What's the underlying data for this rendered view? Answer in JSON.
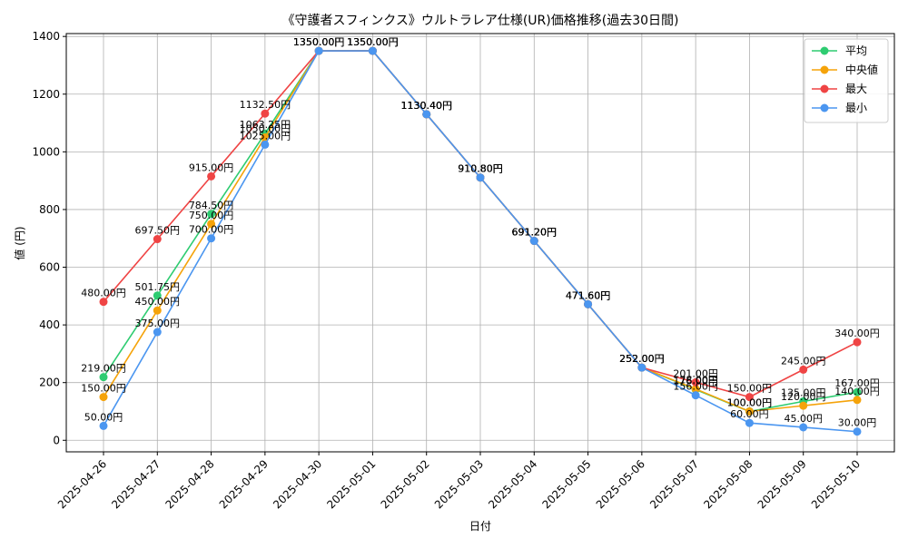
{
  "chart_data": {
    "type": "line",
    "title": "《守護者スフィンクス》ウルトラレア仕様(UR)価格推移(過去30日間)",
    "xlabel": "日付",
    "ylabel": "値 (円)",
    "ylim": [
      -40,
      1410
    ],
    "yticks": [
      0,
      200,
      400,
      600,
      800,
      1000,
      1200,
      1400
    ],
    "grid": true,
    "legend_position": "top-right",
    "categories": [
      "2025-04-26",
      "2025-04-27",
      "2025-04-28",
      "2025-04-29",
      "2025-04-30",
      "2025-05-01",
      "2025-05-02",
      "2025-05-03",
      "2025-05-04",
      "2025-05-05",
      "2025-05-06",
      "2025-05-07",
      "2025-05-08",
      "2025-05-09",
      "2025-05-10"
    ],
    "series": [
      {
        "name": "平均",
        "color": "#2ecc71",
        "values": [
          219.0,
          501.75,
          784.5,
          1063.25,
          1350.0,
          1350.0,
          1130.4,
          910.8,
          691.2,
          471.6,
          252.0,
          176.0,
          100.0,
          135.0,
          167.0
        ],
        "labels": [
          "219.00円",
          "501.75円",
          "784.50円",
          "1063.25円",
          "1350.00円",
          "1350.00円",
          "1130.40円",
          "910.80円",
          "691.20円",
          "471.60円",
          "252.00円",
          "176.00円",
          "100.00円",
          "135.00円",
          "167.00円"
        ]
      },
      {
        "name": "中央値",
        "color": "#f5a30a",
        "values": [
          150.0,
          450.0,
          750.0,
          1050.0,
          1350.0,
          1350.0,
          1130.4,
          910.8,
          691.2,
          471.6,
          252.0,
          178.0,
          100.0,
          120.0,
          140.0
        ],
        "labels": [
          "150.00円",
          "450.00円",
          "750.00円",
          "1050.00円",
          "1350.00円",
          "1350.00円",
          "1130.40円",
          "910.80円",
          "691.20円",
          "471.60円",
          "252.00円",
          "178.00円",
          "100.00円",
          "120.00円",
          "140.00円"
        ]
      },
      {
        "name": "最大",
        "color": "#ef4444",
        "values": [
          480.0,
          697.5,
          915.0,
          1132.5,
          1350.0,
          1350.0,
          1130.4,
          910.8,
          691.2,
          471.6,
          252.0,
          201.0,
          150.0,
          245.0,
          340.0
        ],
        "labels": [
          "480.00円",
          "697.50円",
          "915.00円",
          "1132.50円",
          "1350.00円",
          "1350.00円",
          "1130.40円",
          "910.80円",
          "691.20円",
          "471.60円",
          "252.00円",
          "201.00円",
          "150.00円",
          "245.00円",
          "340.00円"
        ]
      },
      {
        "name": "最小",
        "color": "#4b96f0",
        "values": [
          50.0,
          375.0,
          700.0,
          1025.0,
          1350.0,
          1350.0,
          1130.4,
          910.8,
          691.2,
          471.6,
          252.0,
          156.0,
          60.0,
          45.0,
          30.0
        ],
        "labels": [
          "50.00円",
          "375.00円",
          "700.00円",
          "1025.00円",
          "1350.00円",
          "1350.00円",
          "1130.40円",
          "910.80円",
          "691.20円",
          "471.60円",
          "252.00円",
          "156.00円",
          "60.00円",
          "45.00円",
          "30.00円"
        ]
      }
    ]
  }
}
